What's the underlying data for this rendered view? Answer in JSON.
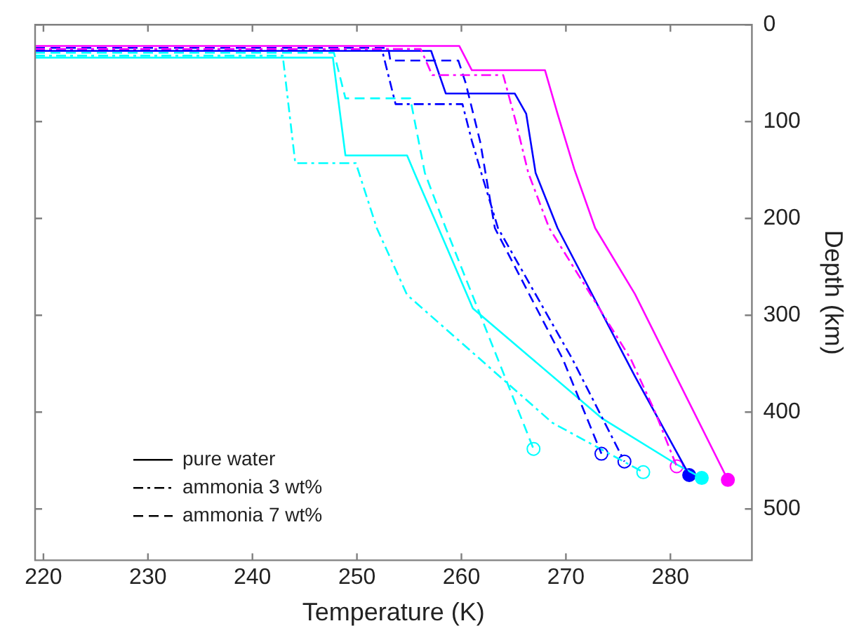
{
  "chart_data": {
    "type": "line",
    "xlabel": "Temperature (K)",
    "ylabel": "Depth (km)",
    "xlim": [
      219.2,
      287.8
    ],
    "xticks": [
      220,
      230,
      240,
      250,
      260,
      270,
      280
    ],
    "ylim": [
      553,
      0
    ],
    "yticks": [
      0,
      100,
      200,
      300,
      400,
      500
    ],
    "grid": false,
    "legend": "left",
    "series": [
      {
        "color": "#ff00ff",
        "line_style": "solid",
        "x": [
          219.2,
          259.8,
          261.0,
          268.0,
          269.2,
          270.8,
          272.8,
          276.6,
          279.7,
          285.5
        ],
        "values": [
          22,
          22,
          47,
          47,
          92,
          149,
          210,
          278,
          345,
          470
        ]
      },
      {
        "color": "#ff00ff",
        "line_style": "dashdot",
        "x": [
          219.2,
          256.1,
          257.2,
          264.0,
          265.2,
          266.4,
          268.4,
          276.2,
          278.5,
          280.6
        ],
        "values": [
          25,
          25,
          52,
          52,
          100,
          153,
          210,
          345,
          399,
          456
        ]
      },
      {
        "color": "#0000ff",
        "line_style": "solid",
        "x": [
          219.2,
          257.1,
          258.5,
          265.1,
          266.2,
          267.1,
          269.2,
          276.6,
          281.8
        ],
        "values": [
          27,
          27,
          71,
          71,
          92,
          153,
          210,
          363,
          465
        ]
      },
      {
        "color": "#0000ff",
        "line_style": "dashdot",
        "x": [
          219.2,
          252.4,
          253.7,
          260.1,
          261.0,
          261.9,
          263.5,
          270.6,
          275.6
        ],
        "values": [
          26,
          26,
          82,
          82,
          120,
          153,
          210,
          345,
          451
        ]
      },
      {
        "color": "#0000ff",
        "line_style": "dashed",
        "x": [
          219.2,
          253.0,
          253.2,
          259.7,
          260.4,
          261.8,
          263.2,
          269.7,
          273.4
        ],
        "values": [
          24,
          24,
          37,
          37,
          60,
          121,
          210,
          345,
          443
        ]
      },
      {
        "color": "#00ffff",
        "line_style": "solid",
        "x": [
          219.2,
          247.7,
          248.9,
          254.8,
          255.5,
          257.8,
          261.1,
          273.4,
          280.6,
          283.0
        ],
        "values": [
          34,
          34,
          135,
          135,
          153,
          210,
          293,
          406,
          454,
          468
        ]
      },
      {
        "color": "#00ffff",
        "line_style": "dashdot",
        "x": [
          219.2,
          242.9,
          244.1,
          249.9,
          250.2,
          251.9,
          254.8,
          268.7,
          277.4
        ],
        "values": [
          32,
          32,
          143,
          143,
          153,
          210,
          279,
          411,
          462
        ]
      },
      {
        "color": "#00ffff",
        "line_style": "dashed",
        "x": [
          219.2,
          247.8,
          248.9,
          255.1,
          256.5,
          258.5,
          266.9
        ],
        "values": [
          29,
          29,
          76,
          76,
          153,
          210,
          438
        ]
      },
      {
        "type": "scatter",
        "marker": "circle",
        "line_style": "solid",
        "colors": [
          "#0000ff",
          "#00ffff",
          "#ff00ff"
        ],
        "x": [
          281.8,
          283.0,
          285.5
        ],
        "values": [
          465,
          468,
          470
        ]
      },
      {
        "type": "scatter",
        "marker": "circle",
        "colors": [
          "#ff00ff",
          "#0000ff",
          "#0000ff",
          "#00ffff",
          "#00ffff"
        ],
        "x": [
          280.6,
          275.6,
          273.4,
          277.4,
          266.9
        ],
        "values": [
          456,
          451,
          443,
          462,
          438
        ]
      },
      {
        "name": "pure water",
        "color": "#000000",
        "line_style": "solid"
      },
      {
        "name": "ammonia 3 wt%",
        "color": "#000000",
        "line_style": "dashdot"
      },
      {
        "name": "ammonia 7 wt%",
        "color": "#000000",
        "line_style": "dashed"
      }
    ]
  }
}
